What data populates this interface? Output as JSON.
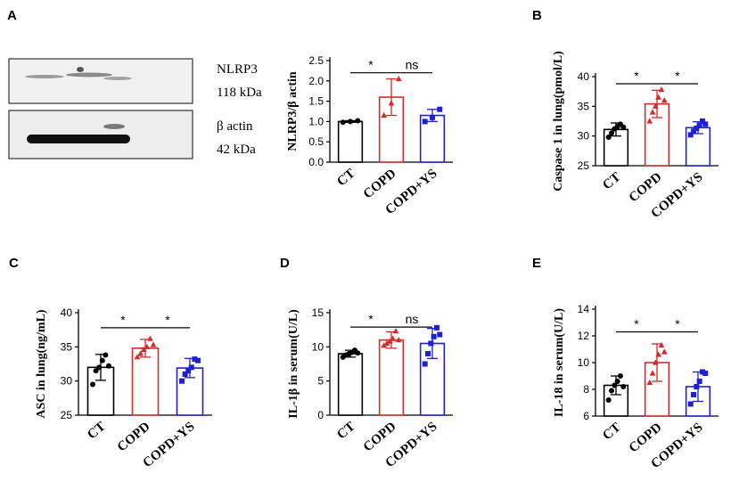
{
  "colors": {
    "CT": "#000000",
    "COPD": "#d42a2a",
    "COPD+YS": "#1f1fd6"
  },
  "blot": {
    "panel_label": "A",
    "nlrp3_label": "NLRP3",
    "nlrp3_kda": "118 kDa",
    "actin_label": "β actin",
    "actin_kda": "42 kDa"
  },
  "chart_data": [
    {
      "id": "nlrp3",
      "type": "bar",
      "panel": "",
      "ylabel": "NLRP3/β actin",
      "categories": [
        "CT",
        "COPD",
        "COPD+YS"
      ],
      "values": [
        1.0,
        1.6,
        1.15
      ],
      "errors": [
        0.02,
        0.45,
        0.15
      ],
      "ylim": [
        0.0,
        2.5
      ],
      "yticks": [
        "0.0",
        "0.5",
        "1.0",
        "1.5",
        "2.0",
        "2.5"
      ],
      "points": [
        [
          0.98,
          1.0,
          1.02
        ],
        [
          1.15,
          1.45,
          2.05
        ],
        [
          1.0,
          1.1,
          1.3
        ]
      ],
      "markers": [
        "circle",
        "triangle",
        "square"
      ],
      "brackets": [
        {
          "from": 0,
          "to": 1,
          "y": 2.2,
          "label": "*"
        },
        {
          "from": 1,
          "to": 2,
          "y": 2.2,
          "label": "ns"
        }
      ]
    },
    {
      "id": "caspase1",
      "type": "bar",
      "panel": "B",
      "ylabel": "Caspase 1 in lung(pmol/L)",
      "categories": [
        "CT",
        "COPD",
        "COPD+YS"
      ],
      "values": [
        31.1,
        35.4,
        31.4
      ],
      "errors": [
        1.1,
        2.3,
        1.0
      ],
      "ylim": [
        25,
        40
      ],
      "yticks": [
        "25",
        "30",
        "35",
        "40"
      ],
      "points": [
        [
          29.8,
          30.5,
          31.2,
          31.6,
          32.0,
          31.5
        ],
        [
          32.5,
          34.0,
          35.0,
          36.5,
          37.8,
          36.0
        ],
        [
          30.2,
          30.8,
          31.3,
          31.8,
          32.5,
          32.0
        ]
      ],
      "markers": [
        "circle",
        "triangle",
        "square"
      ],
      "brackets": [
        {
          "from": 0,
          "to": 1,
          "y": 38.8,
          "label": "*"
        },
        {
          "from": 1,
          "to": 2,
          "y": 38.8,
          "label": "*"
        }
      ]
    },
    {
      "id": "asc",
      "type": "bar",
      "panel": "C",
      "ylabel": "ASC in lung(ng/mL)",
      "categories": [
        "CT",
        "COPD",
        "COPD+YS"
      ],
      "values": [
        32.0,
        34.8,
        31.9
      ],
      "errors": [
        1.9,
        1.3,
        1.4
      ],
      "ylim": [
        25,
        40
      ],
      "yticks": [
        "25",
        "30",
        "35",
        "40"
      ],
      "points": [
        [
          29.5,
          31.5,
          32.0,
          33.0,
          33.8,
          32.2
        ],
        [
          33.5,
          34.0,
          34.6,
          35.0,
          36.2,
          35.3
        ],
        [
          30.0,
          31.0,
          31.5,
          32.0,
          33.2,
          33.0
        ]
      ],
      "markers": [
        "circle",
        "triangle",
        "square"
      ],
      "brackets": [
        {
          "from": 0,
          "to": 1,
          "y": 37.8,
          "label": "*"
        },
        {
          "from": 1,
          "to": 2,
          "y": 37.8,
          "label": "*"
        }
      ]
    },
    {
      "id": "il1b",
      "type": "bar",
      "panel": "D",
      "ylabel": "IL-1β in serum(U/L)",
      "categories": [
        "CT",
        "COPD",
        "COPD+YS"
      ],
      "values": [
        9.0,
        11.0,
        10.5
      ],
      "errors": [
        0.5,
        1.2,
        2.2
      ],
      "ylim": [
        0,
        15
      ],
      "yticks": [
        "0",
        "5",
        "10",
        "15"
      ],
      "points": [
        [
          8.5,
          8.8,
          9.0,
          9.2,
          9.5,
          9.1
        ],
        [
          10.2,
          10.5,
          10.8,
          11.2,
          12.3,
          11.0
        ],
        [
          7.5,
          9.0,
          10.5,
          11.5,
          12.8,
          11.8
        ]
      ],
      "markers": [
        "circle",
        "triangle",
        "square"
      ],
      "brackets": [
        {
          "from": 0,
          "to": 1,
          "y": 12.9,
          "label": "*"
        },
        {
          "from": 1,
          "to": 2,
          "y": 12.9,
          "label": "ns"
        }
      ]
    },
    {
      "id": "il18",
      "type": "bar",
      "panel": "E",
      "ylabel": "IL-18 in serum(U/L)",
      "categories": [
        "CT",
        "COPD",
        "COPD+YS"
      ],
      "values": [
        8.3,
        10.0,
        8.2
      ],
      "errors": [
        0.7,
        1.4,
        1.1
      ],
      "ylim": [
        6,
        14
      ],
      "yticks": [
        "6",
        "8",
        "10",
        "12",
        "14"
      ],
      "points": [
        [
          7.2,
          7.9,
          8.3,
          8.6,
          9.0,
          8.2
        ],
        [
          8.5,
          9.2,
          10.0,
          10.6,
          11.3,
          10.8
        ],
        [
          6.9,
          7.6,
          8.2,
          8.6,
          9.3,
          9.2
        ]
      ],
      "markers": [
        "circle",
        "triangle",
        "square"
      ],
      "brackets": [
        {
          "from": 0,
          "to": 1,
          "y": 12.3,
          "label": "*"
        },
        {
          "from": 1,
          "to": 2,
          "y": 12.3,
          "label": "*"
        }
      ]
    }
  ]
}
